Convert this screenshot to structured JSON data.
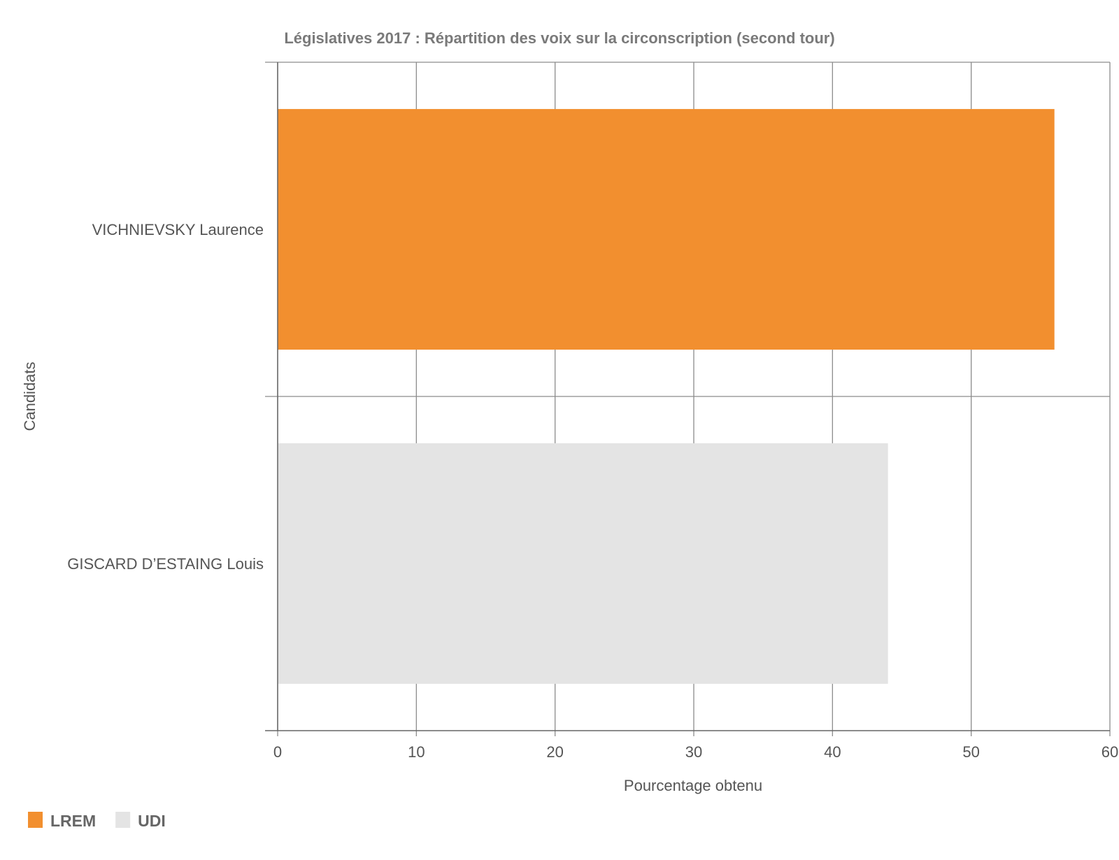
{
  "chart_data": {
    "type": "bar",
    "orientation": "horizontal",
    "title": "Législatives 2017 : Répartition des voix sur la circonscription (second tour)",
    "xlabel": "Pourcentage obtenu",
    "ylabel": "Candidats",
    "categories": [
      "VICHNIEVSKY Laurence",
      "GISCARD D’ESTAING Louis"
    ],
    "values": [
      56,
      44
    ],
    "bar_colors": [
      "#f28f2f",
      "#e4e4e4"
    ],
    "xlim": [
      0,
      60
    ],
    "xticks": [
      0,
      10,
      20,
      30,
      40,
      50,
      60
    ],
    "grid": true,
    "legend": {
      "position": "bottom-left",
      "items": [
        {
          "label": "LREM",
          "color": "#f28f2f"
        },
        {
          "label": "UDI",
          "color": "#e4e4e4"
        }
      ]
    }
  }
}
